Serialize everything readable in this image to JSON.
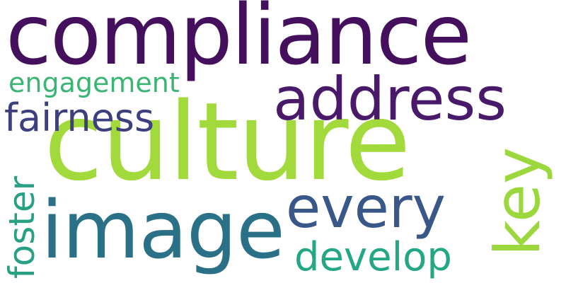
{
  "words": [
    {
      "key": "compliance",
      "text": "compliance",
      "color": "#440f5c"
    },
    {
      "key": "culture",
      "text": "culture",
      "color": "#a2d93b"
    },
    {
      "key": "address",
      "text": "address",
      "color": "#481a69"
    },
    {
      "key": "image",
      "text": "image",
      "color": "#2a7086"
    },
    {
      "key": "every",
      "text": "every",
      "color": "#3a5789"
    },
    {
      "key": "key",
      "text": "key",
      "color": "#9ad83d"
    },
    {
      "key": "fairness",
      "text": "fairness",
      "color": "#3d3f7e"
    },
    {
      "key": "engagement",
      "text": "engagement",
      "color": "#3bb574"
    },
    {
      "key": "foster",
      "text": "foster",
      "color": "#27a084"
    },
    {
      "key": "develop",
      "text": "develop",
      "color": "#24a785"
    }
  ]
}
